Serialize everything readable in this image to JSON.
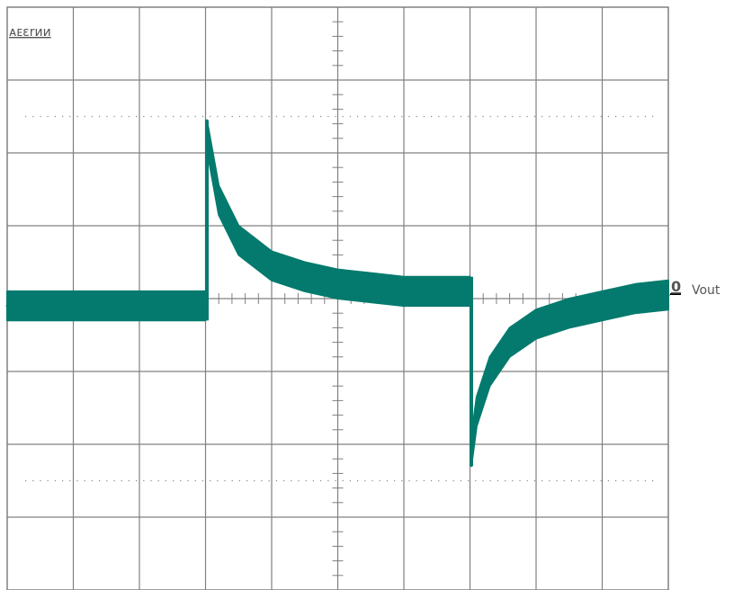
{
  "chart_data": {
    "type": "line",
    "title": "",
    "corner_label": "ᴀᴇɛrᴎᴎ",
    "trace_label": "Vout",
    "trace_marker": "0",
    "trace_color": "#037a6d",
    "grid": true,
    "grid_color": "#808080",
    "xlim": [
      0,
      10
    ],
    "ylim": [
      -4,
      4
    ],
    "x_divisions": 10,
    "y_divisions": 8,
    "series": [
      {
        "name": "",
        "x": [
          0,
          3,
          3.02,
          3.2,
          3.5,
          4,
          4.5,
          5,
          5.5,
          6,
          7,
          7.02,
          7.1,
          7.3,
          7.6,
          8,
          8.5,
          9,
          9.5,
          10
        ],
        "y": [
          -0.1,
          -0.1,
          2.25,
          1.35,
          0.8,
          0.45,
          0.3,
          0.2,
          0.15,
          0.1,
          0.1,
          -2.1,
          -1.55,
          -1.0,
          -0.6,
          -0.35,
          -0.2,
          -0.1,
          0.0,
          0.05
        ],
        "band_halfwidth_v": 0.2
      }
    ]
  }
}
